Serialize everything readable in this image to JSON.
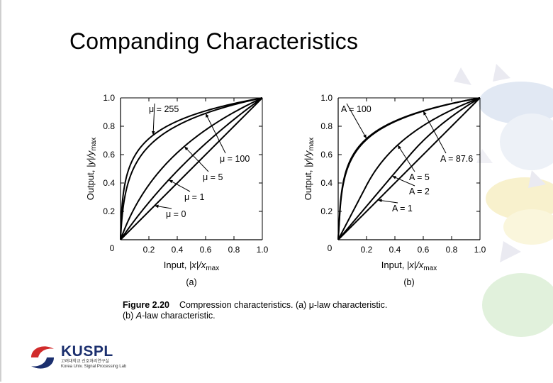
{
  "slide": {
    "title": "Companding Characteristics"
  },
  "chart_data": [
    {
      "type": "line",
      "title": "",
      "xlabel": "Input, |x|/x_max",
      "ylabel": "Output, |y|/y_max",
      "xlabel_parts": {
        "text": "Input, ",
        "var": "|x|/x",
        "sub": "max"
      },
      "ylabel_parts": {
        "text": "Output, ",
        "var": "|y|/y",
        "sub": "max"
      },
      "panel_label": "(a)",
      "xlim": [
        0,
        1
      ],
      "ylim": [
        0,
        1
      ],
      "x_ticks": [
        "0.2",
        "0.4",
        "0.6",
        "0.8",
        "1.0"
      ],
      "y_ticks": [
        "0.2",
        "0.4",
        "0.6",
        "0.8",
        "1.0"
      ],
      "origin_label": "0",
      "grid": false,
      "series": [
        {
          "name": "μ = 255",
          "param": 255,
          "label_pos": [
            0.2,
            0.9
          ],
          "arrow_to": 0.23
        },
        {
          "name": "μ = 100",
          "param": 100,
          "label_pos": [
            0.7,
            0.55
          ],
          "arrow_to": 0.6
        },
        {
          "name": "μ = 5",
          "param": 5,
          "label_pos": [
            0.58,
            0.42
          ],
          "arrow_to": 0.45
        },
        {
          "name": "μ = 1",
          "param": 1,
          "label_pos": [
            0.45,
            0.28
          ],
          "arrow_to": 0.34
        },
        {
          "name": "μ = 0",
          "param": 0,
          "label_pos": [
            0.32,
            0.16
          ],
          "arrow_to": 0.24
        }
      ]
    },
    {
      "type": "line",
      "title": "",
      "xlabel": "Input, |x|/x_max",
      "ylabel": "Output, |y|/y_max",
      "xlabel_parts": {
        "text": "Input, ",
        "var": "|x|/x",
        "sub": "max"
      },
      "ylabel_parts": {
        "text": "Output, ",
        "var": "|y|/y",
        "sub": "max"
      },
      "panel_label": "(b)",
      "xlim": [
        0,
        1
      ],
      "ylim": [
        0,
        1
      ],
      "x_ticks": [
        "0.2",
        "0.4",
        "0.6",
        "0.8",
        "1.0"
      ],
      "y_ticks": [
        "0.2",
        "0.4",
        "0.6",
        "0.8",
        "1.0"
      ],
      "origin_label": "0",
      "grid": false,
      "series": [
        {
          "name": "A = 100",
          "param": 100,
          "label_pos": [
            0.02,
            0.9
          ],
          "arrow_to": 0.2
        },
        {
          "name": "A = 87.6",
          "param": 87.6,
          "label_pos": [
            0.72,
            0.55
          ],
          "arrow_to": 0.6
        },
        {
          "name": "A = 5",
          "param": 5,
          "label_pos": [
            0.5,
            0.42
          ],
          "arrow_to": 0.42
        },
        {
          "name": "A = 2",
          "param": 2,
          "label_pos": [
            0.5,
            0.32
          ],
          "arrow_to": 0.38
        },
        {
          "name": "A = 1",
          "param": 1,
          "label_pos": [
            0.38,
            0.2
          ],
          "arrow_to": 0.28
        }
      ]
    }
  ],
  "caption": {
    "figure_label": "Figure  2.20",
    "line1": "Compression  characteristics.  (a)  μ-law  characteristic.",
    "line2_prefix": "(b) ",
    "line2_italic": "A",
    "line2_rest": "-law characteristic."
  },
  "logo": {
    "name": "KUSPL",
    "sub_line1": "고려대학교 신호처리연구실",
    "sub_line2": "Korea Univ. Signal Processing Lab",
    "colors": {
      "red": "#d12b2b",
      "blue": "#1b2f6e"
    }
  },
  "decor_colors": [
    "#a8c8e8",
    "#f3e7a6",
    "#c8e6c0",
    "#d9d9e6"
  ]
}
